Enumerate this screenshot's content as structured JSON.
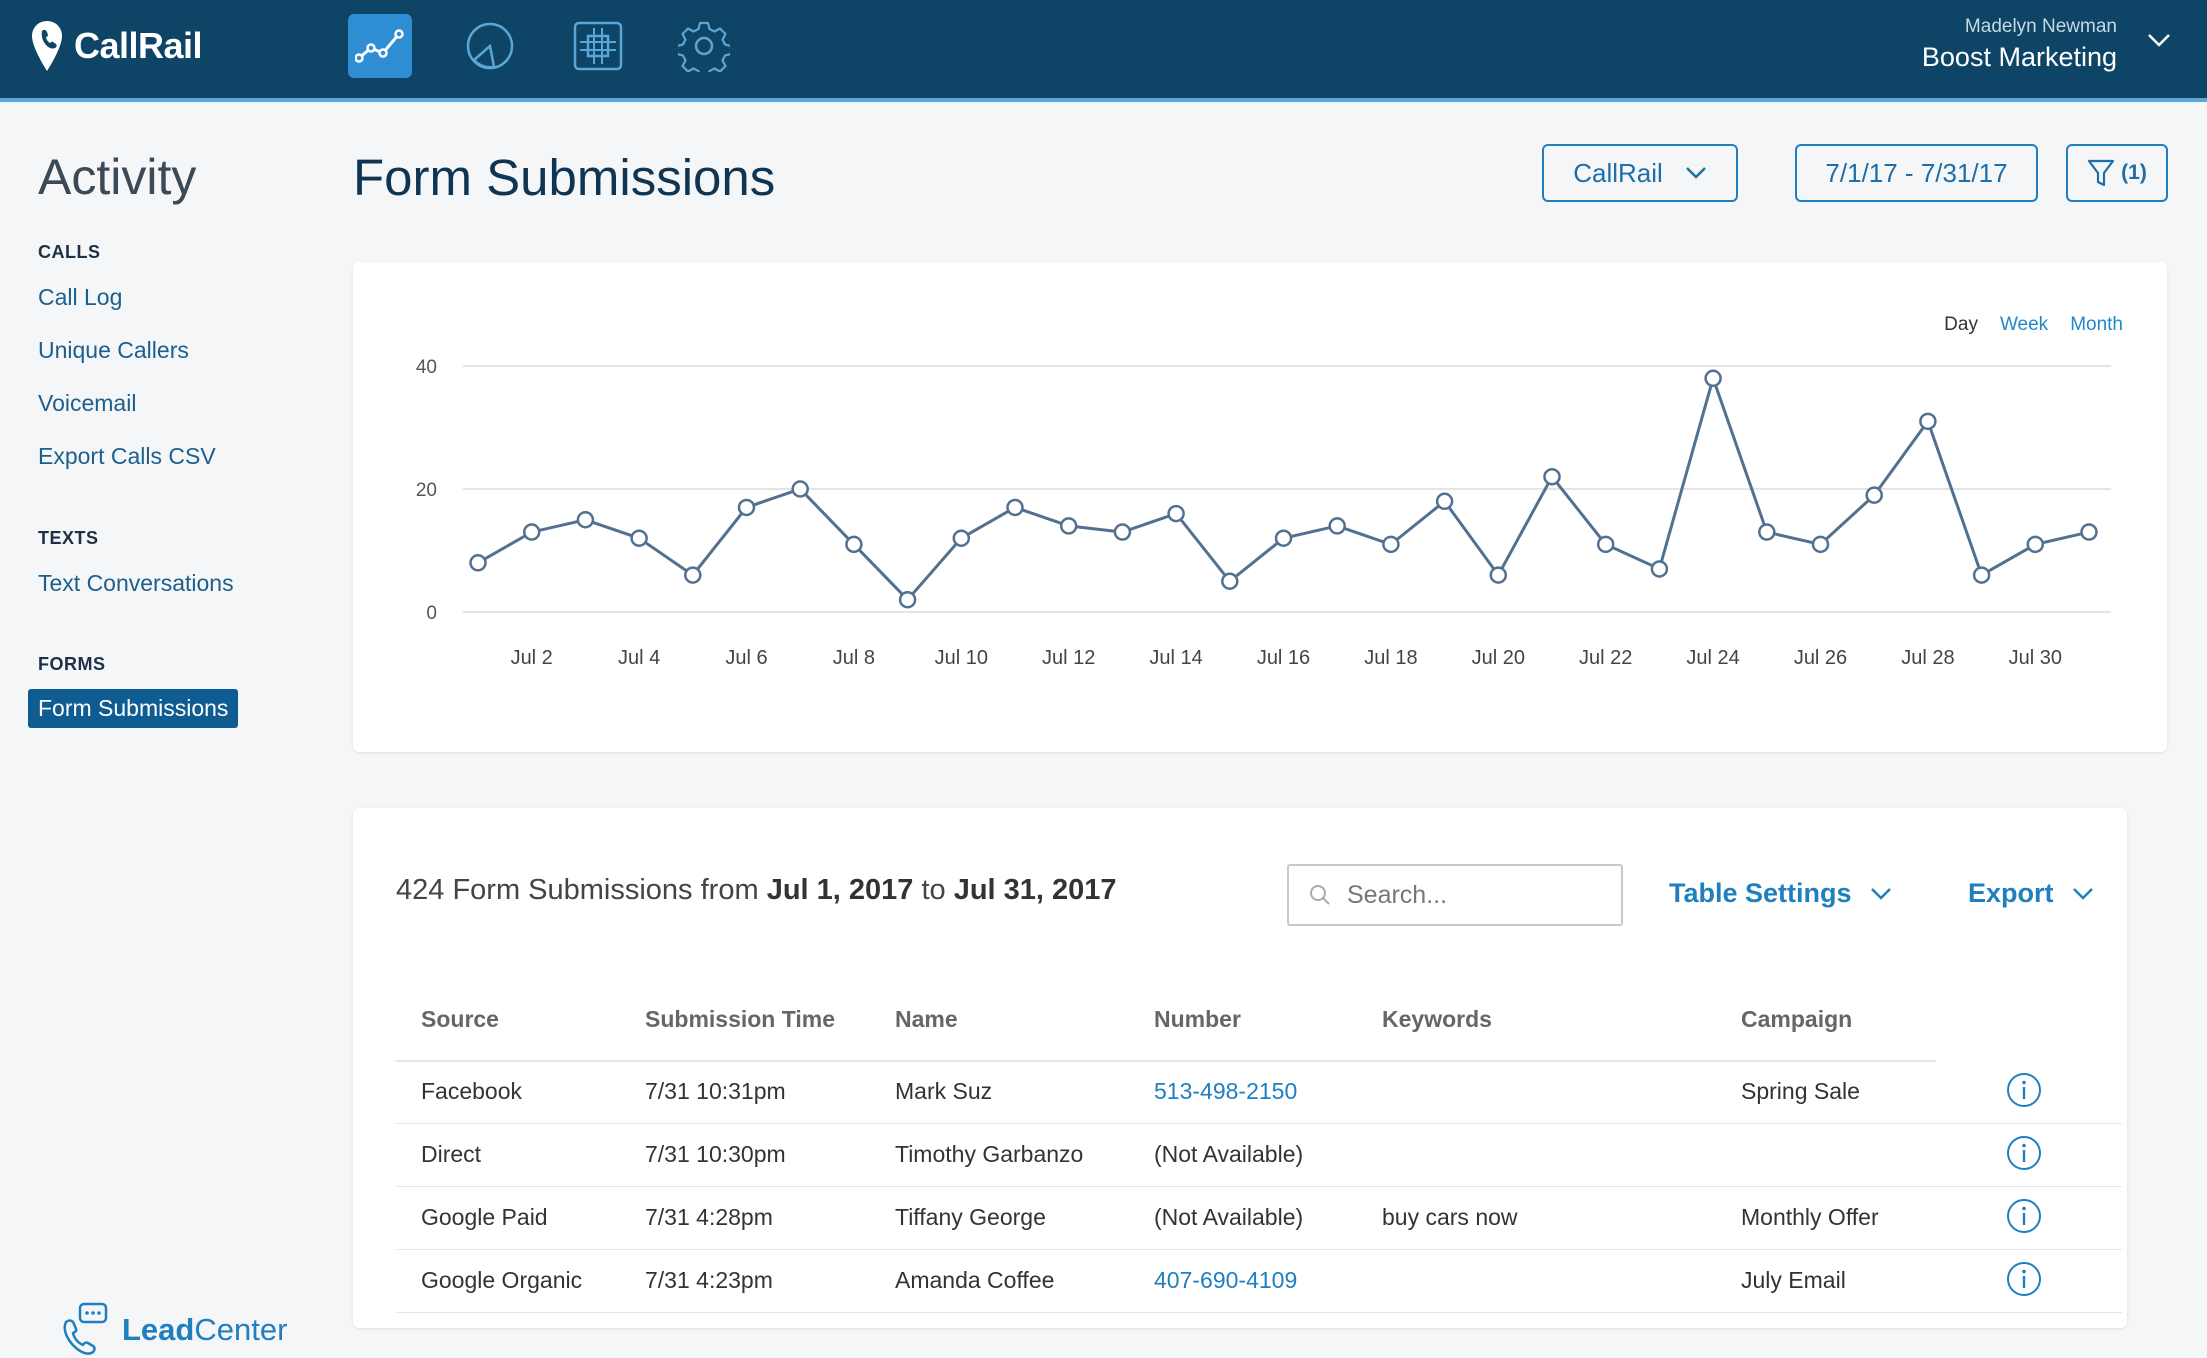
{
  "header": {
    "app_name": "CallRail",
    "nav_icons": [
      "activity-chart-icon",
      "reports-pie-icon",
      "integrations-icon",
      "settings-gear-icon"
    ],
    "user_name": "Madelyn Newman",
    "account_name": "Boost Marketing"
  },
  "sidebar": {
    "title": "Activity",
    "sections": {
      "calls": {
        "heading": "CALLS",
        "items": [
          "Call Log",
          "Unique Callers",
          "Voicemail",
          "Export Calls CSV"
        ]
      },
      "texts": {
        "heading": "TEXTS",
        "items": [
          "Text Conversations"
        ]
      },
      "forms": {
        "heading": "FORMS",
        "items": [
          "Form Submissions"
        ]
      }
    },
    "active_item": "Form Submissions",
    "leadcenter": {
      "lead": "Lead",
      "center": "Center"
    }
  },
  "main": {
    "title": "Form Submissions",
    "company_select": "CallRail",
    "date_range": "7/1/17 - 7/31/17",
    "filter_count": "(1)"
  },
  "chart": {
    "range_tabs": [
      "Day",
      "Week",
      "Month"
    ],
    "selected_range": "Day"
  },
  "chart_data": {
    "type": "line",
    "x": [
      1,
      2,
      3,
      4,
      5,
      6,
      7,
      8,
      9,
      10,
      11,
      12,
      13,
      14,
      15,
      16,
      17,
      18,
      19,
      20,
      21,
      22,
      23,
      24,
      25,
      26,
      27,
      28,
      29,
      30,
      31
    ],
    "series": [
      {
        "values": [
          8,
          13,
          15,
          12,
          6,
          17,
          20,
          11,
          2,
          12,
          17,
          14,
          13,
          16,
          5,
          12,
          14,
          11,
          18,
          6,
          22,
          11,
          7,
          38,
          13,
          11,
          19,
          31,
          6,
          11,
          13
        ]
      }
    ],
    "y_ticks": [
      "0",
      "20",
      "40"
    ],
    "ylim": [
      0,
      40
    ],
    "x_tick_labels": [
      "Jul 2",
      "Jul 4",
      "Jul 6",
      "Jul 8",
      "Jul 10",
      "Jul 12",
      "Jul 14",
      "Jul 16",
      "Jul 18",
      "Jul 20",
      "Jul 22",
      "Jul 24",
      "Jul 26",
      "Jul 28",
      "Jul 30"
    ],
    "x_tick_days": [
      2,
      4,
      6,
      8,
      10,
      12,
      14,
      16,
      18,
      20,
      22,
      24,
      26,
      28,
      30
    ],
    "grid": true,
    "line_color": "#52708f"
  },
  "table": {
    "summary_count": "424 Form Submissions from",
    "summary_start": "Jul 1, 2017",
    "summary_to": "to",
    "summary_end": "Jul 31, 2017",
    "search_placeholder": "Search...",
    "table_settings_label": "Table Settings",
    "export_label": "Export",
    "columns": [
      "Source",
      "Submission Time",
      "Name",
      "Number",
      "Keywords",
      "Campaign"
    ],
    "rows": [
      {
        "source": "Facebook",
        "time": "7/31 10:31pm",
        "name": "Mark Suz",
        "number": "513-498-2150",
        "number_is_link": true,
        "keywords": "",
        "campaign": "Spring Sale"
      },
      {
        "source": "Direct",
        "time": "7/31 10:30pm",
        "name": "Timothy Garbanzo",
        "number": "(Not Available)",
        "number_is_link": false,
        "keywords": "",
        "campaign": ""
      },
      {
        "source": "Google Paid",
        "time": "7/31 4:28pm",
        "name": "Tiffany George",
        "number": "(Not Available)",
        "number_is_link": false,
        "keywords": "buy cars now",
        "campaign": "Monthly Offer"
      },
      {
        "source": "Google Organic",
        "time": "7/31 4:23pm",
        "name": "Amanda Coffee",
        "number": "407-690-4109",
        "number_is_link": true,
        "keywords": "",
        "campaign": "July Email"
      }
    ]
  },
  "colors": {
    "topbar": "#0e4466",
    "accent": "#1f7fbf",
    "active_nav": "#2f8dd3",
    "sidebar_active": "#0f5c92"
  }
}
